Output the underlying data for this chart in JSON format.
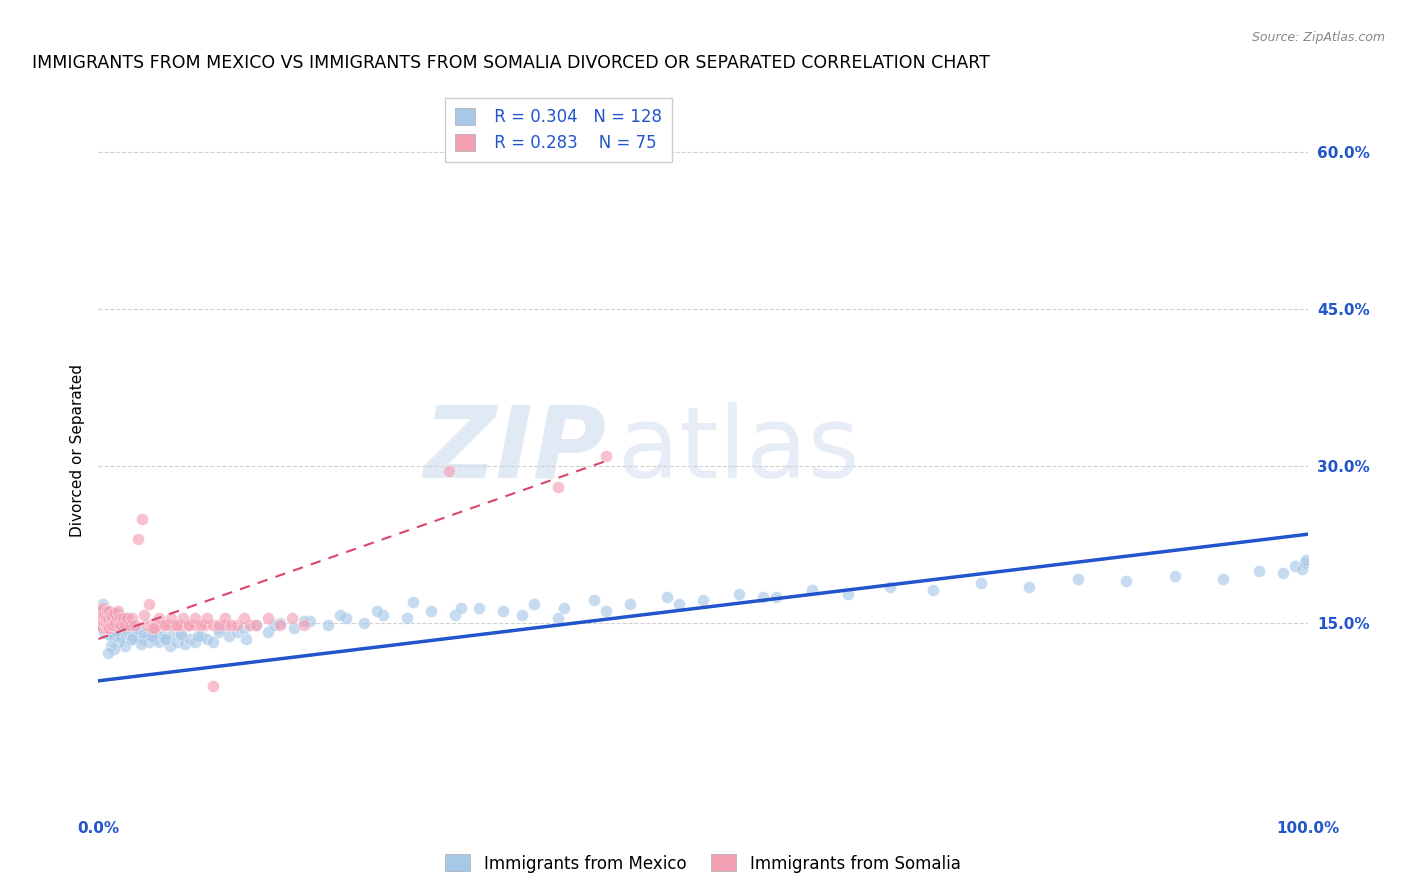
{
  "title": "IMMIGRANTS FROM MEXICO VS IMMIGRANTS FROM SOMALIA DIVORCED OR SEPARATED CORRELATION CHART",
  "source": "Source: ZipAtlas.com",
  "ylabel": "Divorced or Separated",
  "watermark_zip": "ZIP",
  "watermark_atlas": "atlas",
  "xlim": [
    0.0,
    1.0
  ],
  "ylim": [
    -0.03,
    0.66
  ],
  "yticks_right": [
    0.15,
    0.3,
    0.45,
    0.6
  ],
  "ytick_labels_right": [
    "15.0%",
    "30.0%",
    "45.0%",
    "60.0%"
  ],
  "grid_color": "#cccccc",
  "background_color": "#ffffff",
  "mexico_color": "#a8c8e8",
  "somalia_color": "#f4a0b5",
  "mexico_line_color": "#2255cc",
  "somalia_line_color": "#dd4466",
  "mexico_trend": [
    0.0,
    1.0,
    0.095,
    0.235
  ],
  "somalia_trend": [
    0.0,
    0.42,
    0.135,
    0.305
  ],
  "legend_R_mexico": "0.304",
  "legend_N_mexico": "128",
  "legend_R_somalia": "0.283",
  "legend_N_somalia": "75",
  "title_fontsize": 12.5,
  "tick_fontsize": 11,
  "legend_fontsize": 12,
  "marker_size": 75,
  "marker_alpha": 0.65,
  "mexico_x": [
    0.002,
    0.003,
    0.003,
    0.004,
    0.004,
    0.005,
    0.005,
    0.006,
    0.006,
    0.007,
    0.007,
    0.008,
    0.008,
    0.009,
    0.009,
    0.01,
    0.01,
    0.011,
    0.011,
    0.012,
    0.012,
    0.013,
    0.014,
    0.015,
    0.015,
    0.016,
    0.017,
    0.018,
    0.019,
    0.02,
    0.021,
    0.022,
    0.023,
    0.024,
    0.025,
    0.026,
    0.027,
    0.028,
    0.029,
    0.03,
    0.032,
    0.034,
    0.036,
    0.038,
    0.04,
    0.042,
    0.044,
    0.046,
    0.048,
    0.05,
    0.053,
    0.056,
    0.059,
    0.062,
    0.065,
    0.068,
    0.072,
    0.076,
    0.08,
    0.085,
    0.09,
    0.095,
    0.1,
    0.108,
    0.115,
    0.122,
    0.13,
    0.14,
    0.15,
    0.162,
    0.175,
    0.19,
    0.205,
    0.22,
    0.235,
    0.255,
    0.275,
    0.295,
    0.315,
    0.335,
    0.36,
    0.385,
    0.41,
    0.44,
    0.47,
    0.5,
    0.53,
    0.56,
    0.59,
    0.62,
    0.655,
    0.69,
    0.73,
    0.77,
    0.81,
    0.85,
    0.89,
    0.93,
    0.96,
    0.98,
    0.99,
    0.995,
    0.998,
    0.999,
    0.55,
    0.48,
    0.42,
    0.38,
    0.35,
    0.3,
    0.26,
    0.23,
    0.2,
    0.17,
    0.145,
    0.12,
    0.1,
    0.082,
    0.068,
    0.055,
    0.044,
    0.035,
    0.028,
    0.022,
    0.017,
    0.013,
    0.01,
    0.008
  ],
  "mexico_y": [
    0.155,
    0.148,
    0.162,
    0.15,
    0.168,
    0.142,
    0.158,
    0.145,
    0.162,
    0.148,
    0.155,
    0.14,
    0.158,
    0.145,
    0.152,
    0.138,
    0.155,
    0.142,
    0.16,
    0.145,
    0.152,
    0.138,
    0.155,
    0.142,
    0.16,
    0.148,
    0.145,
    0.155,
    0.138,
    0.152,
    0.145,
    0.148,
    0.138,
    0.155,
    0.142,
    0.148,
    0.135,
    0.142,
    0.138,
    0.145,
    0.138,
    0.142,
    0.135,
    0.14,
    0.138,
    0.132,
    0.142,
    0.135,
    0.14,
    0.132,
    0.138,
    0.135,
    0.128,
    0.14,
    0.132,
    0.138,
    0.13,
    0.135,
    0.132,
    0.138,
    0.135,
    0.132,
    0.145,
    0.138,
    0.142,
    0.135,
    0.148,
    0.142,
    0.15,
    0.145,
    0.152,
    0.148,
    0.155,
    0.15,
    0.158,
    0.155,
    0.162,
    0.158,
    0.165,
    0.162,
    0.168,
    0.165,
    0.172,
    0.168,
    0.175,
    0.172,
    0.178,
    0.175,
    0.182,
    0.178,
    0.185,
    0.182,
    0.188,
    0.185,
    0.192,
    0.19,
    0.195,
    0.192,
    0.2,
    0.198,
    0.205,
    0.202,
    0.208,
    0.21,
    0.175,
    0.168,
    0.162,
    0.155,
    0.158,
    0.165,
    0.17,
    0.162,
    0.158,
    0.152,
    0.148,
    0.145,
    0.142,
    0.138,
    0.14,
    0.135,
    0.138,
    0.13,
    0.135,
    0.128,
    0.132,
    0.125,
    0.128,
    0.122
  ],
  "somalia_x": [
    0.001,
    0.002,
    0.002,
    0.003,
    0.003,
    0.004,
    0.004,
    0.005,
    0.005,
    0.006,
    0.006,
    0.007,
    0.007,
    0.008,
    0.008,
    0.009,
    0.009,
    0.01,
    0.01,
    0.011,
    0.012,
    0.013,
    0.014,
    0.015,
    0.016,
    0.017,
    0.018,
    0.019,
    0.02,
    0.022,
    0.024,
    0.026,
    0.028,
    0.03,
    0.033,
    0.036,
    0.04,
    0.044,
    0.048,
    0.053,
    0.058,
    0.063,
    0.068,
    0.074,
    0.08,
    0.088,
    0.095,
    0.105,
    0.115,
    0.125,
    0.038,
    0.042,
    0.046,
    0.05,
    0.055,
    0.06,
    0.065,
    0.07,
    0.075,
    0.08,
    0.085,
    0.09,
    0.095,
    0.1,
    0.105,
    0.11,
    0.12,
    0.13,
    0.14,
    0.15,
    0.16,
    0.17,
    0.29,
    0.38,
    0.42
  ],
  "somalia_y": [
    0.155,
    0.15,
    0.162,
    0.148,
    0.158,
    0.145,
    0.165,
    0.15,
    0.158,
    0.148,
    0.155,
    0.145,
    0.162,
    0.148,
    0.155,
    0.162,
    0.145,
    0.158,
    0.148,
    0.155,
    0.148,
    0.16,
    0.15,
    0.155,
    0.162,
    0.148,
    0.155,
    0.148,
    0.155,
    0.148,
    0.155,
    0.148,
    0.155,
    0.148,
    0.23,
    0.25,
    0.148,
    0.145,
    0.148,
    0.148,
    0.148,
    0.148,
    0.148,
    0.148,
    0.148,
    0.148,
    0.148,
    0.148,
    0.148,
    0.148,
    0.158,
    0.168,
    0.145,
    0.155,
    0.148,
    0.155,
    0.148,
    0.155,
    0.148,
    0.155,
    0.148,
    0.155,
    0.09,
    0.148,
    0.155,
    0.148,
    0.155,
    0.148,
    0.155,
    0.148,
    0.155,
    0.148,
    0.295,
    0.28,
    0.31
  ]
}
